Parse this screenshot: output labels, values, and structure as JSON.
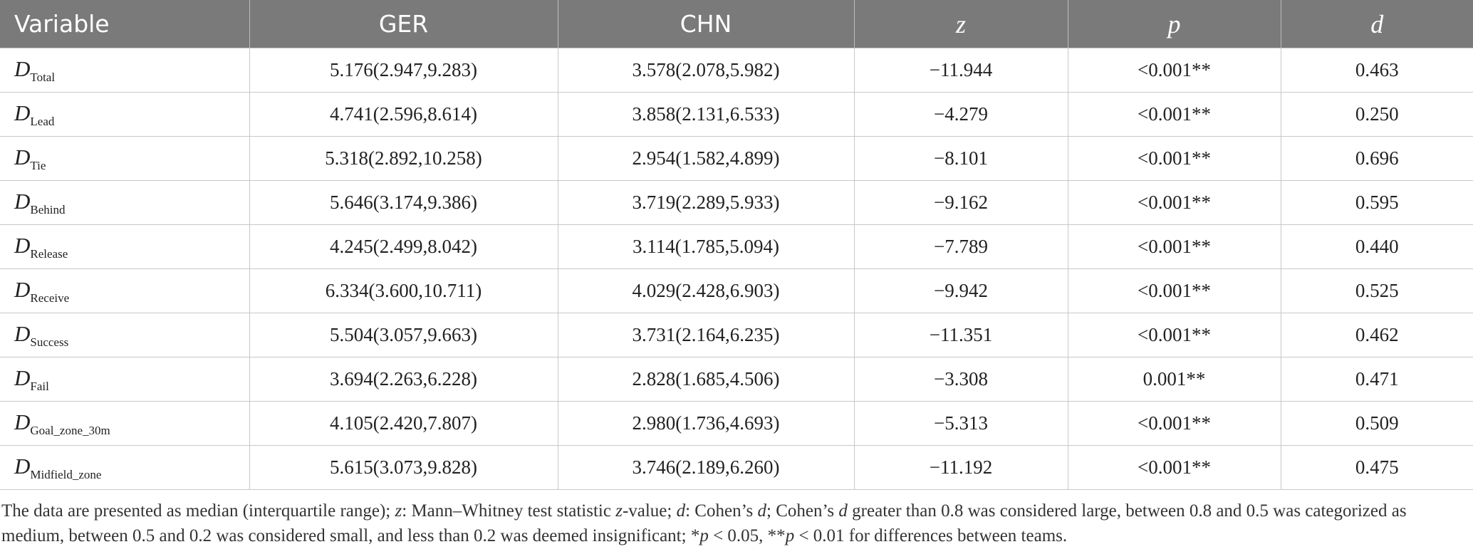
{
  "table": {
    "headers": [
      "Variable",
      "GER",
      "CHN",
      "z",
      "p",
      "d"
    ],
    "rows": [
      {
        "var": "D",
        "sub": "Total",
        "ger": "5.176(2.947,9.283)",
        "chn": "3.578(2.078,5.982)",
        "z": "−11.944",
        "p": "<0.001**",
        "d": "0.463"
      },
      {
        "var": "D",
        "sub": "Lead",
        "ger": "4.741(2.596,8.614)",
        "chn": "3.858(2.131,6.533)",
        "z": "−4.279",
        "p": "<0.001**",
        "d": "0.250"
      },
      {
        "var": "D",
        "sub": "Tie",
        "ger": "5.318(2.892,10.258)",
        "chn": "2.954(1.582,4.899)",
        "z": "−8.101",
        "p": "<0.001**",
        "d": "0.696"
      },
      {
        "var": "D",
        "sub": "Behind",
        "ger": "5.646(3.174,9.386)",
        "chn": "3.719(2.289,5.933)",
        "z": "−9.162",
        "p": "<0.001**",
        "d": "0.595"
      },
      {
        "var": "D",
        "sub": "Release",
        "ger": "4.245(2.499,8.042)",
        "chn": "3.114(1.785,5.094)",
        "z": "−7.789",
        "p": "<0.001**",
        "d": "0.440"
      },
      {
        "var": "D",
        "sub": "Receive",
        "ger": "6.334(3.600,10.711)",
        "chn": "4.029(2.428,6.903)",
        "z": "−9.942",
        "p": "<0.001**",
        "d": "0.525"
      },
      {
        "var": "D",
        "sub": "Success",
        "ger": "5.504(3.057,9.663)",
        "chn": "3.731(2.164,6.235)",
        "z": "−11.351",
        "p": "<0.001**",
        "d": "0.462"
      },
      {
        "var": "D",
        "sub": "Fail",
        "ger": "3.694(2.263,6.228)",
        "chn": "2.828(1.685,4.506)",
        "z": "−3.308",
        "p": "0.001**",
        "d": "0.471"
      },
      {
        "var": "D",
        "sub": "Goal_zone_30m",
        "ger": "4.105(2.420,7.807)",
        "chn": "2.980(1.736,4.693)",
        "z": "−5.313",
        "p": "<0.001**",
        "d": "0.509"
      },
      {
        "var": "D",
        "sub": "Midfield_zone",
        "ger": "5.615(3.073,9.828)",
        "chn": "3.746(2.189,6.260)",
        "z": "−11.192",
        "p": "<0.001**",
        "d": "0.475"
      }
    ]
  },
  "footnote": {
    "s1": "The data are presented as median (interquartile range); ",
    "z": "z",
    "s2": ": Mann–Whitney test statistic ",
    "z2": "z",
    "s3": "-value; ",
    "d": "d",
    "s4": ": Cohen’s ",
    "d2": "d",
    "s5": "; Cohen’s ",
    "d3": "d",
    "s6": " greater than 0.8 was considered large, between 0.8 and 0.5 was categorized as medium, between 0.5 and 0.2 was considered small, and less than 0.2 was deemed insignificant; *",
    "p1": "p",
    "s7": " < 0.05, **",
    "p2": "p",
    "s8": " < 0.01 for differences between teams."
  }
}
